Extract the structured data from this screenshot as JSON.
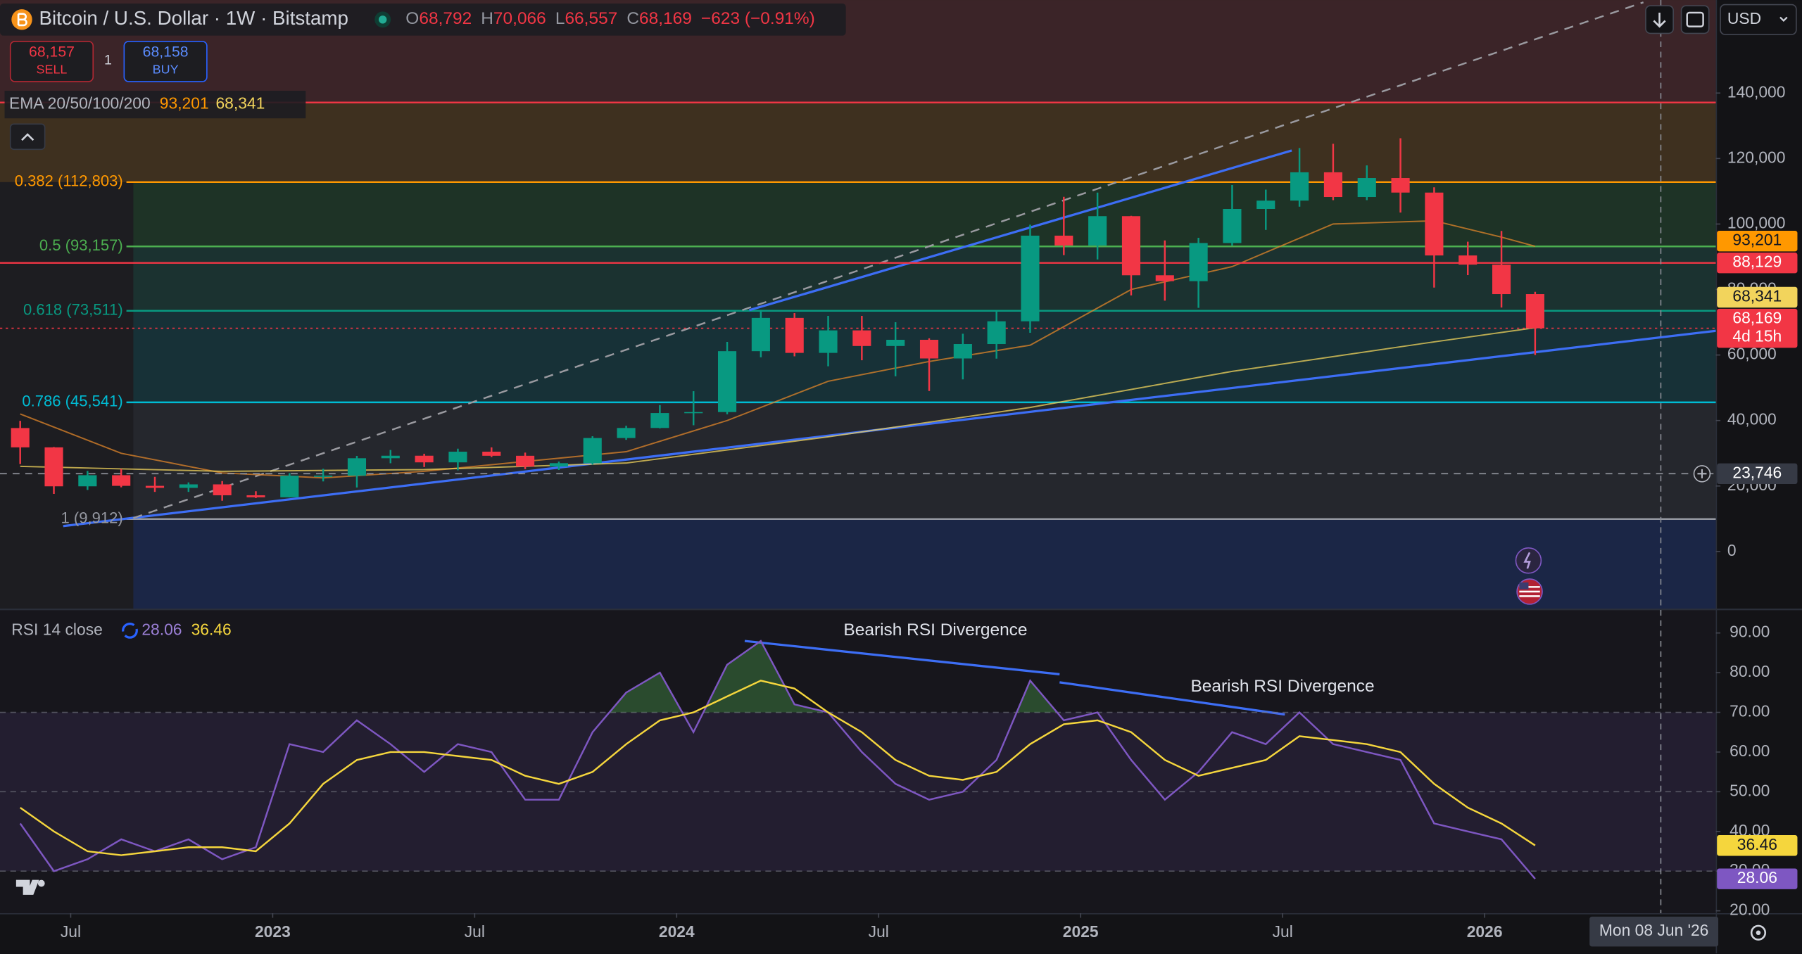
{
  "header": {
    "symbol": "Bitcoin / U.S. Dollar · 1W · Bitstamp",
    "ohlc": [
      {
        "key": "O",
        "value": "68,792"
      },
      {
        "key": "H",
        "value": "70,066"
      },
      {
        "key": "L",
        "value": "66,557"
      },
      {
        "key": "C",
        "value": "68,169"
      }
    ],
    "change": "−623 (−0.91%)",
    "currency": "USD"
  },
  "trade": {
    "sell_price": "68,157",
    "sell_label": "SELL",
    "quantity": "1",
    "buy_price": "68,158",
    "buy_label": "BUY"
  },
  "chart_data": [
    {
      "type": "candlestick",
      "x": [
        "2022-05",
        "2022-06",
        "2022-07",
        "2022-08",
        "2022-09",
        "2022-10",
        "2022-11",
        "2022-12",
        "2023-01",
        "2023-02",
        "2023-03",
        "2023-04",
        "2023-05",
        "2023-06",
        "2023-07",
        "2023-08",
        "2023-09",
        "2023-10",
        "2023-11",
        "2023-12",
        "2024-01",
        "2024-02",
        "2024-03",
        "2024-04",
        "2024-05",
        "2024-06",
        "2024-07",
        "2024-08",
        "2024-09",
        "2024-10",
        "2024-11",
        "2024-12",
        "2025-01",
        "2025-02",
        "2025-03",
        "2025-04",
        "2025-05",
        "2025-06",
        "2025-07",
        "2025-08",
        "2025-09",
        "2025-10",
        "2025-11",
        "2025-12",
        "2026-01",
        "2026-02"
      ],
      "open": [
        37700,
        31800,
        19900,
        23300,
        20050,
        19430,
        20500,
        17170,
        16550,
        23140,
        23150,
        28480,
        29250,
        27220,
        30480,
        29230,
        25940,
        26970,
        34650,
        37720,
        42280,
        42580,
        61170,
        71330,
        60650,
        67520,
        62750,
        64650,
        58950,
        63350,
        70300,
        96450,
        93450,
        102400,
        84350,
        82550,
        94200,
        104600,
        107150,
        115800,
        108250,
        114050,
        109600,
        90400,
        87600,
        78600
      ],
      "high": [
        39900,
        31900,
        24600,
        25200,
        22800,
        21100,
        21500,
        18400,
        23950,
        25250,
        29200,
        31000,
        29850,
        31400,
        31800,
        30200,
        27450,
        35200,
        38400,
        44700,
        48950,
        64000,
        73800,
        72800,
        71950,
        71950,
        70000,
        65100,
        66500,
        73600,
        99800,
        108300,
        109600,
        102500,
        95000,
        95800,
        111900,
        110500,
        123200,
        124500,
        117900,
        126200,
        111200,
        94600,
        97900,
        79300
      ],
      "low": [
        26700,
        17600,
        18800,
        19600,
        18200,
        18200,
        15500,
        16300,
        16500,
        21400,
        19550,
        26950,
        25800,
        24800,
        28850,
        25150,
        24900,
        26550,
        34100,
        37600,
        38550,
        41900,
        59300,
        59600,
        56550,
        58400,
        53500,
        49000,
        52550,
        58900,
        66800,
        90500,
        89200,
        78200,
        76600,
        74400,
        93400,
        98200,
        105300,
        107300,
        107300,
        103500,
        80600,
        84400,
        74500,
        60000
      ],
      "close": [
        31800,
        19900,
        23300,
        20050,
        19430,
        20500,
        17170,
        16550,
        23140,
        23150,
        28480,
        29250,
        27220,
        30480,
        29230,
        25940,
        26970,
        34650,
        37720,
        42280,
        42580,
        61170,
        71330,
        60650,
        67520,
        62750,
        64650,
        58950,
        63350,
        70300,
        96450,
        93450,
        102400,
        84350,
        82550,
        94200,
        104600,
        107150,
        115800,
        108250,
        114050,
        109600,
        90400,
        87600,
        78600,
        68169
      ],
      "up_color": "#089981",
      "down_color": "#f23645",
      "xlim": [
        "2022-04-28",
        "2026-07-27"
      ],
      "ylim": [
        -17500,
        168400
      ],
      "yticks": [
        0,
        {
          "value": 20000,
          "label": "20,000"
        },
        {
          "value": 40000,
          "label": "40,000"
        },
        {
          "value": 60000,
          "label": "60,000"
        },
        {
          "value": 80000,
          "label": "80,000"
        },
        {
          "value": 100000,
          "label": "100,000"
        },
        {
          "value": 120000,
          "label": "120,000"
        },
        {
          "value": 140000,
          "label": "140,000"
        }
      ],
      "xticks": [
        {
          "value": "2022-07",
          "label": "Jul"
        },
        {
          "value": "2023-01",
          "label": "2023"
        },
        {
          "value": "2023-07",
          "label": "Jul"
        },
        {
          "value": "2024-01",
          "label": "2024"
        },
        {
          "value": "2024-07",
          "label": "Jul"
        },
        {
          "value": "2025-01",
          "label": "2025"
        },
        {
          "value": "2025-07",
          "label": "Jul"
        },
        {
          "value": "2026-01",
          "label": "2026"
        }
      ],
      "ema": {
        "label": "EMA 20/50/100/200",
        "series": [
          {
            "color": "#e0862a",
            "x": [
              "2022-05",
              "2022-08",
              "2022-11",
              "2023-02",
              "2023-05",
              "2023-08",
              "2023-11",
              "2024-02",
              "2024-05",
              "2024-08",
              "2024-11",
              "2025-02",
              "2025-05",
              "2025-08",
              "2025-11",
              "2026-01",
              "2026-02"
            ],
            "values": [
              42000,
              30000,
              24000,
              22500,
              24500,
              27500,
              30500,
              40000,
              52000,
              58000,
              63000,
              80000,
              87000,
              100000,
              101000,
              96000,
              93201
            ],
            "value_label": "93,201"
          },
          {
            "color": "#f2d45c",
            "x": [
              "2022-05",
              "2022-11",
              "2023-05",
              "2023-11",
              "2024-05",
              "2024-11",
              "2025-05",
              "2025-11",
              "2026-02"
            ],
            "values": [
              26000,
              24500,
              25000,
              27000,
              35000,
              44000,
              55000,
              64000,
              68341
            ],
            "value_label": "68,341"
          }
        ]
      },
      "fib": {
        "levels": [
          {
            "price": 137110,
            "color": "#f23645"
          },
          {
            "price": 112803,
            "label": "0.382 (112,803)",
            "color": "#ff9800"
          },
          {
            "price": 93157,
            "label": "0.5 (93,157)",
            "color": "#4caf50"
          },
          {
            "price": 73511,
            "label": "0.618 (73,511)",
            "color": "#089981"
          },
          {
            "price": 45541,
            "label": "0.786 (45,541)",
            "color": "#00bcd4"
          },
          {
            "price": 9912,
            "label": "1 (9,912)",
            "color": "#9598a1"
          }
        ],
        "band_colors": [
          "#3b2428",
          "#3e301f",
          "#1e3326",
          "#1b3230",
          "#173137",
          "#25272d",
          "#1b2646"
        ]
      },
      "price_lines": [
        {
          "value": 88129,
          "label": "88,129",
          "color": "#f23645",
          "style": "solid"
        },
        {
          "value": 68169,
          "label": "68,169",
          "sublabel": "4d 15h",
          "color": "#f23645",
          "style": "dotted"
        },
        {
          "value": 23746,
          "label": "23,746",
          "color": "#9598a1",
          "style": "dashed"
        }
      ],
      "crosshair": {
        "x": "2026-06-08",
        "label": "Mon 08 Jun '26"
      }
    },
    {
      "type": "line",
      "legend": "RSI 14 close",
      "x": [
        "2022-05",
        "2022-06",
        "2022-07",
        "2022-08",
        "2022-09",
        "2022-10",
        "2022-11",
        "2022-12",
        "2023-01",
        "2023-02",
        "2023-03",
        "2023-04",
        "2023-05",
        "2023-06",
        "2023-07",
        "2023-08",
        "2023-09",
        "2023-10",
        "2023-11",
        "2023-12",
        "2024-01",
        "2024-02",
        "2024-03",
        "2024-04",
        "2024-05",
        "2024-06",
        "2024-07",
        "2024-08",
        "2024-09",
        "2024-10",
        "2024-11",
        "2024-12",
        "2025-01",
        "2025-02",
        "2025-03",
        "2025-04",
        "2025-05",
        "2025-06",
        "2025-07",
        "2025-08",
        "2025-09",
        "2025-10",
        "2025-11",
        "2025-12",
        "2026-01",
        "2026-02"
      ],
      "series": [
        {
          "color": "#7e57c2",
          "values": [
            42,
            30,
            33,
            38,
            35,
            38,
            33,
            36,
            62,
            60,
            68,
            62,
            55,
            62,
            60,
            48,
            48,
            65,
            75,
            80,
            65,
            82,
            88,
            72,
            70,
            60,
            52,
            48,
            50,
            58,
            78,
            68,
            70,
            58,
            48,
            55,
            65,
            62,
            70,
            62,
            60,
            58,
            42,
            40,
            38,
            28.06
          ],
          "value_label": "28.06"
        },
        {
          "color": "#f5d63d",
          "values": [
            46,
            40,
            35,
            34,
            35,
            36,
            36,
            35,
            42,
            52,
            58,
            60,
            60,
            59,
            58,
            54,
            52,
            55,
            62,
            68,
            70,
            74,
            78,
            76,
            70,
            65,
            58,
            54,
            53,
            55,
            62,
            67,
            68,
            65,
            58,
            54,
            56,
            58,
            64,
            63,
            62,
            60,
            52,
            46,
            42,
            36.46
          ],
          "value_label": "36.46"
        }
      ],
      "ylim": [
        19.4,
        95.8
      ],
      "yticks": [
        {
          "value": 20,
          "label": "20.00"
        },
        {
          "value": 30,
          "label": "30.00"
        },
        {
          "value": 40,
          "label": "40.00"
        },
        {
          "value": 50,
          "label": "50.00"
        },
        {
          "value": 60,
          "label": "60.00"
        },
        {
          "value": 70,
          "label": "70.00"
        },
        {
          "value": 80,
          "label": "80.00"
        },
        {
          "value": 90,
          "label": "90.00"
        }
      ],
      "levels": [
        70,
        50,
        30
      ],
      "band_color": "#7e57c2",
      "overbought_color": "#4caf50",
      "annotations": [
        "Bearish RSI Divergence",
        "Bearish RSI Divergence"
      ]
    }
  ]
}
